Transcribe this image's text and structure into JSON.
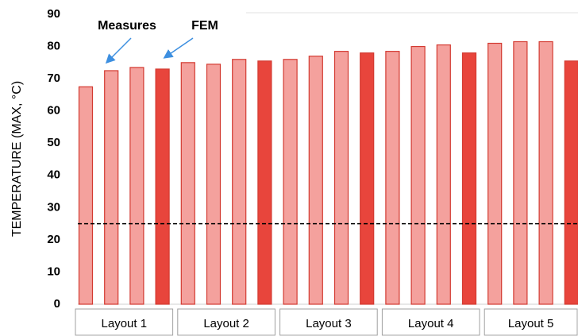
{
  "chart_data": {
    "type": "bar",
    "y_label": "TEMPERATURE (MAX, °C)",
    "categories": [
      null,
      null,
      null,
      null,
      null,
      null,
      null,
      null,
      null,
      null,
      null,
      null,
      null,
      null,
      null,
      null,
      null,
      null,
      null,
      null
    ],
    "group_labels": [
      "Layout 1",
      "Layout 2",
      "Layout 3",
      "Layout 4",
      "Layout 5"
    ],
    "series": [
      {
        "name": "Measures",
        "color": "#f4a19d",
        "values": [
          67.5,
          72.5,
          73.5,
          null,
          75,
          74.5,
          76,
          null,
          76,
          77,
          78.5,
          null,
          78.5,
          80,
          80.5,
          null,
          81,
          81.5,
          81.5,
          null
        ]
      },
      {
        "name": "FEM",
        "color": "#e8453c",
        "values": [
          null,
          null,
          null,
          73,
          null,
          null,
          null,
          75.5,
          null,
          null,
          null,
          78,
          null,
          null,
          null,
          78,
          null,
          null,
          null,
          75.5
        ]
      }
    ],
    "reference_line": 25,
    "ylim": [
      0,
      90
    ],
    "yticks": [
      0,
      10,
      20,
      30,
      40,
      50,
      60,
      70,
      80,
      90
    ]
  }
}
